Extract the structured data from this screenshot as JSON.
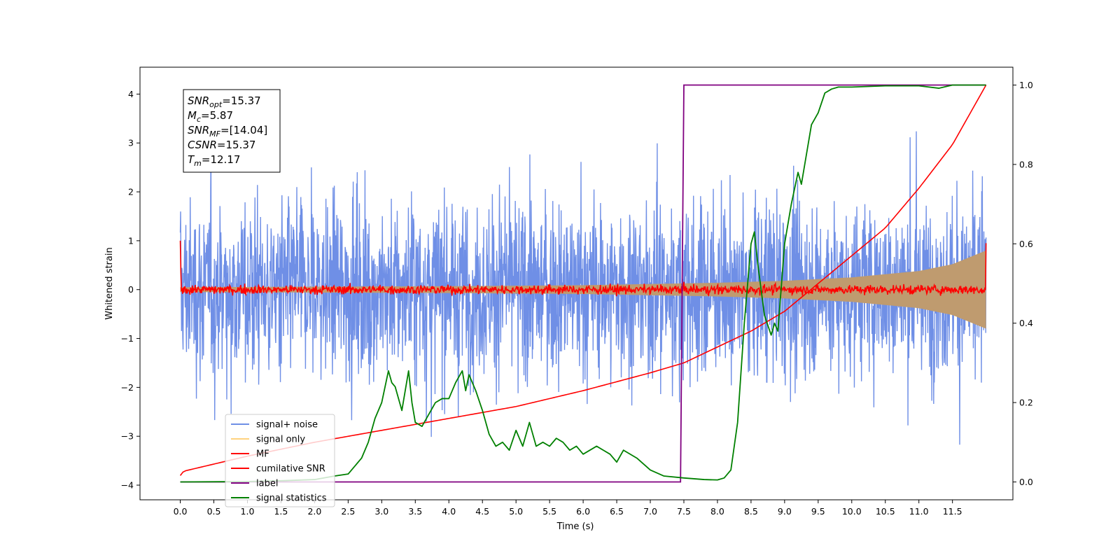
{
  "chart_data": {
    "type": "line",
    "xlabel": "Time (s)",
    "ylabel": "Whitened strain",
    "xlim": [
      -0.6,
      12.4
    ],
    "ylim": [
      -4.3,
      4.55
    ],
    "y2lim": [
      -0.045,
      1.045
    ],
    "xticks": [
      "0.0",
      "0.5",
      "1.0",
      "1.5",
      "2.0",
      "2.5",
      "3.0",
      "3.5",
      "4.0",
      "4.5",
      "5.0",
      "5.5",
      "6.0",
      "6.5",
      "7.0",
      "7.5",
      "8.0",
      "8.5",
      "9.0",
      "9.5",
      "10.0",
      "10.5",
      "11.0",
      "11.5"
    ],
    "yticks": [
      "−4",
      "−3",
      "−2",
      "−1",
      "0",
      "1",
      "2",
      "3",
      "4"
    ],
    "y2ticks": [
      "0.0",
      "0.2",
      "0.4",
      "0.6",
      "0.8",
      "1.0"
    ],
    "noise_envelope": {
      "t_start": 0.0,
      "t_end": 12.0,
      "typical_amplitude": 2.0,
      "max_amplitude": 4.2
    },
    "signal_envelope": {
      "t": [
        0.0,
        2.0,
        4.0,
        6.0,
        8.0,
        9.0,
        10.0,
        11.0,
        11.5,
        12.0
      ],
      "amplitude": [
        0.05,
        0.06,
        0.07,
        0.09,
        0.14,
        0.18,
        0.25,
        0.38,
        0.52,
        0.8
      ]
    },
    "mf_noise_amplitude": 0.12,
    "cumulative_snr": {
      "axis": "right",
      "x": [
        0.0,
        0.05,
        1.0,
        2.0,
        3.0,
        4.0,
        5.0,
        6.0,
        7.0,
        7.5,
        8.0,
        8.5,
        9.0,
        9.5,
        10.0,
        10.5,
        11.0,
        11.5,
        12.0
      ],
      "y": [
        0.016,
        0.027,
        0.065,
        0.1,
        0.13,
        0.16,
        0.19,
        0.23,
        0.275,
        0.3,
        0.34,
        0.38,
        0.43,
        0.5,
        0.57,
        0.64,
        0.74,
        0.85,
        1.0
      ]
    },
    "series": [
      {
        "name": "signal+ noise",
        "color": "#6f8fe6"
      },
      {
        "name": "signal only",
        "color": "#ffd27f"
      },
      {
        "name": "MF",
        "color": "#ff0000"
      },
      {
        "name": "cumilative SNR",
        "color": "#ff0000"
      },
      {
        "name": "label",
        "color": "#800080",
        "axis": "right",
        "x": [
          0.0,
          7.45,
          7.5,
          12.0
        ],
        "y": [
          0.0,
          0.0,
          1.0,
          1.0
        ]
      },
      {
        "name": "signal statistics",
        "color": "#008000",
        "axis": "right",
        "x": [
          0.0,
          1.0,
          1.5,
          2.0,
          2.3,
          2.5,
          2.6,
          2.7,
          2.8,
          2.9,
          3.0,
          3.1,
          3.15,
          3.2,
          3.3,
          3.4,
          3.45,
          3.5,
          3.6,
          3.7,
          3.8,
          3.9,
          4.0,
          4.1,
          4.2,
          4.25,
          4.3,
          4.4,
          4.5,
          4.6,
          4.7,
          4.8,
          4.9,
          5.0,
          5.1,
          5.2,
          5.3,
          5.4,
          5.5,
          5.6,
          5.7,
          5.8,
          5.9,
          6.0,
          6.2,
          6.3,
          6.4,
          6.5,
          6.6,
          6.8,
          7.0,
          7.2,
          7.5,
          7.8,
          8.0,
          8.1,
          8.2,
          8.3,
          8.4,
          8.5,
          8.55,
          8.6,
          8.7,
          8.8,
          8.85,
          8.9,
          9.0,
          9.1,
          9.2,
          9.25,
          9.3,
          9.4,
          9.5,
          9.6,
          9.7,
          9.8,
          10.0,
          10.5,
          11.0,
          11.3,
          11.5,
          12.0
        ],
        "y": [
          0.0,
          0.001,
          0.003,
          0.006,
          0.015,
          0.02,
          0.04,
          0.06,
          0.1,
          0.16,
          0.2,
          0.28,
          0.25,
          0.24,
          0.18,
          0.28,
          0.2,
          0.15,
          0.14,
          0.17,
          0.2,
          0.21,
          0.21,
          0.25,
          0.28,
          0.23,
          0.27,
          0.23,
          0.18,
          0.12,
          0.09,
          0.1,
          0.08,
          0.13,
          0.09,
          0.15,
          0.09,
          0.1,
          0.09,
          0.11,
          0.1,
          0.08,
          0.09,
          0.07,
          0.09,
          0.08,
          0.07,
          0.05,
          0.08,
          0.06,
          0.03,
          0.015,
          0.01,
          0.006,
          0.005,
          0.01,
          0.03,
          0.15,
          0.4,
          0.6,
          0.63,
          0.55,
          0.42,
          0.37,
          0.4,
          0.38,
          0.6,
          0.7,
          0.78,
          0.75,
          0.8,
          0.9,
          0.93,
          0.98,
          0.99,
          0.995,
          0.995,
          0.998,
          0.998,
          0.992,
          1.0,
          1.0
        ]
      }
    ],
    "legend_placement": "lower-left",
    "annotation": [
      {
        "base": "SNR",
        "sub": "opt",
        "value": "=15.37"
      },
      {
        "base": "M",
        "sub": "c",
        "value": "=5.87"
      },
      {
        "base": "SNR",
        "sub": "MF",
        "value": "=[14.04]"
      },
      {
        "base": "CSNR",
        "sub": "",
        "value": "=15.37"
      },
      {
        "base": "T",
        "sub": "m",
        "value": "=12.17"
      }
    ]
  }
}
